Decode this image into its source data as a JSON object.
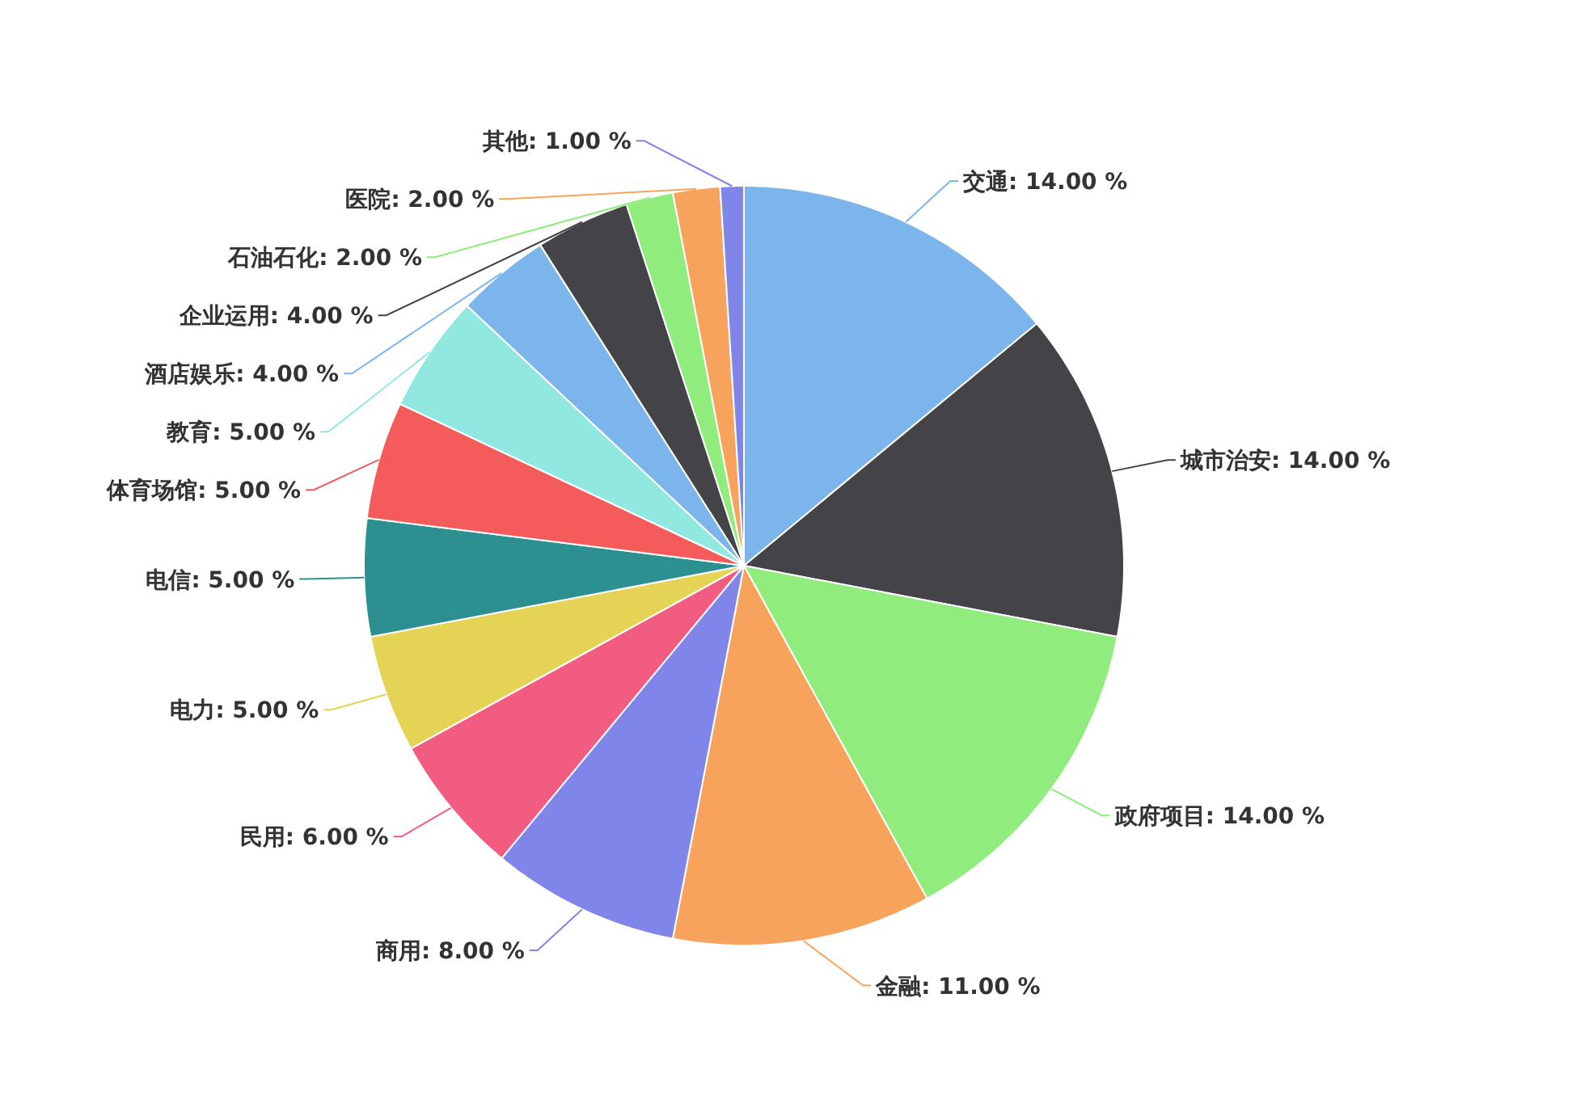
{
  "chart_data": {
    "type": "pie",
    "categories": [
      "交通",
      "城市治安",
      "政府项目",
      "金融",
      "商用",
      "民用",
      "电力",
      "电信",
      "体育场馆",
      "教育",
      "酒店娱乐",
      "企业运用",
      "石油石化",
      "医院",
      "其他"
    ],
    "values": [
      14,
      14,
      14,
      11,
      8,
      6,
      5,
      5,
      5,
      5,
      4,
      4,
      2,
      2,
      1
    ],
    "value_labels": [
      "14.00 %",
      "14.00 %",
      "14.00 %",
      "11.00 %",
      "8.00 %",
      "6.00 %",
      "5.00 %",
      "5.00 %",
      "5.00 %",
      "5.00 %",
      "4.00 %",
      "4.00 %",
      "2.00 %",
      "2.00 %",
      "1.00 %"
    ],
    "colors": [
      "#7cb5ec",
      "#434348",
      "#90ed7d",
      "#f7a35c",
      "#8085e9",
      "#f15c80",
      "#e4d354",
      "#2b908f",
      "#f45b5b",
      "#91e8e1",
      "#7cb5ec",
      "#434348",
      "#90ed7d",
      "#f7a35c",
      "#8085e9"
    ]
  }
}
